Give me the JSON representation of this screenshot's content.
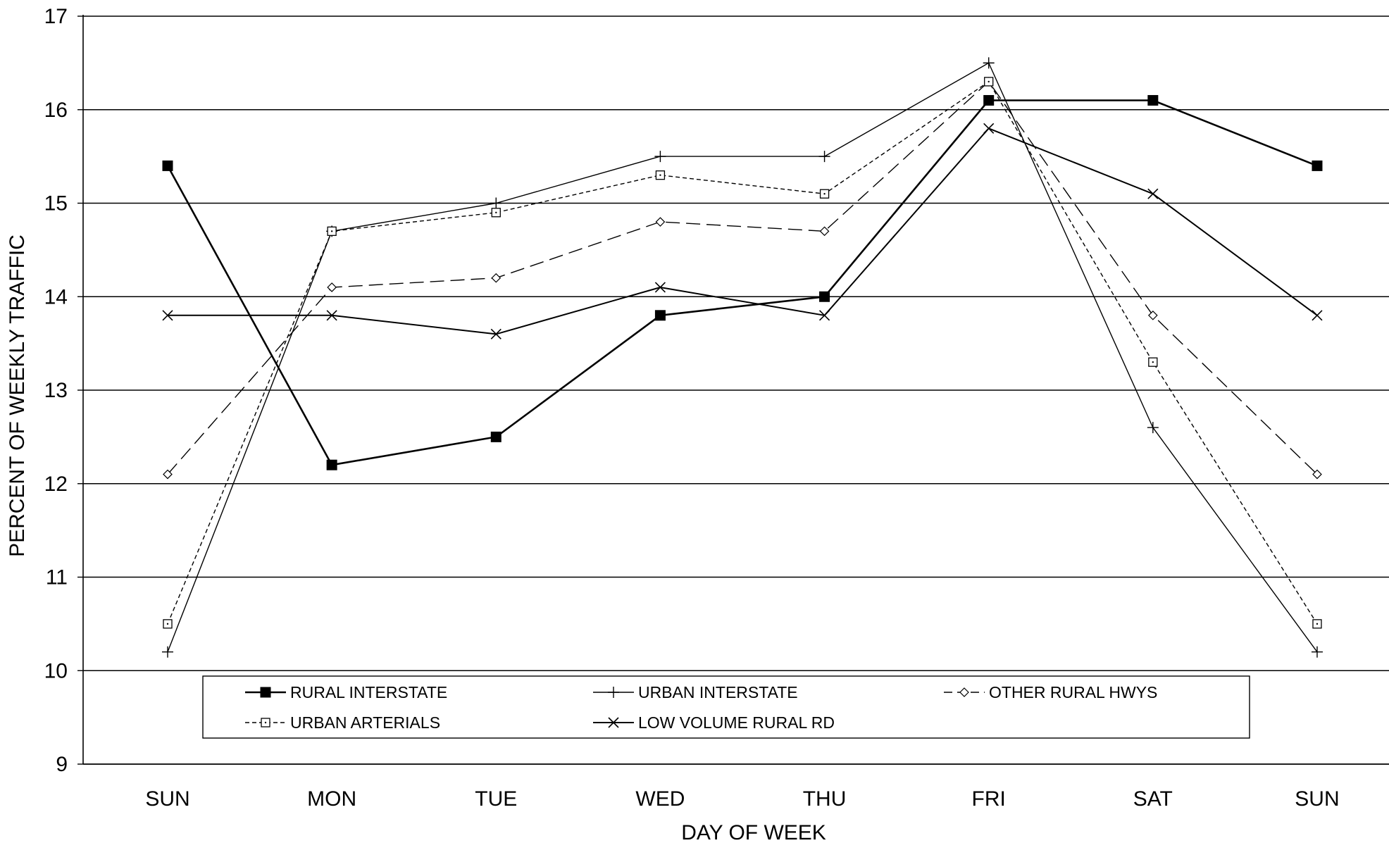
{
  "chart_data": {
    "type": "line",
    "title": "",
    "xlabel": "DAY OF WEEK",
    "ylabel": "PERCENT OF WEEKLY TRAFFIC",
    "categories": [
      "SUN",
      "MON",
      "TUE",
      "WED",
      "THU",
      "FRI",
      "SAT",
      "SUN"
    ],
    "ylim": [
      9,
      17
    ],
    "yticks": [
      9,
      10,
      11,
      12,
      13,
      14,
      15,
      16,
      17
    ],
    "grid": true,
    "legend_position": "bottom-inside",
    "series": [
      {
        "name": "RURAL INTERSTATE",
        "marker": "filled-square",
        "dash": "solid",
        "stroke_weight": "bold",
        "values": [
          15.4,
          12.2,
          12.5,
          13.8,
          14.0,
          16.1,
          16.1,
          15.4
        ]
      },
      {
        "name": "URBAN INTERSTATE",
        "marker": "plus",
        "dash": "solid",
        "stroke_weight": "thin",
        "values": [
          10.2,
          14.7,
          15.0,
          15.5,
          15.5,
          16.5,
          12.6,
          10.2
        ]
      },
      {
        "name": "OTHER RURAL HWYS",
        "marker": "open-diamond",
        "dash": "long-dash",
        "stroke_weight": "thin",
        "values": [
          12.1,
          14.1,
          14.2,
          14.8,
          14.7,
          16.3,
          13.8,
          12.1
        ]
      },
      {
        "name": "URBAN ARTERIALS",
        "marker": "open-square",
        "dash": "short-dash",
        "stroke_weight": "thin",
        "values": [
          10.5,
          14.7,
          14.9,
          15.3,
          15.1,
          16.3,
          13.3,
          10.5
        ]
      },
      {
        "name": "LOW VOLUME RURAL RD",
        "marker": "x",
        "dash": "solid",
        "stroke_weight": "medium",
        "values": [
          13.8,
          13.8,
          13.6,
          14.1,
          13.8,
          15.8,
          15.1,
          13.8
        ]
      }
    ]
  }
}
